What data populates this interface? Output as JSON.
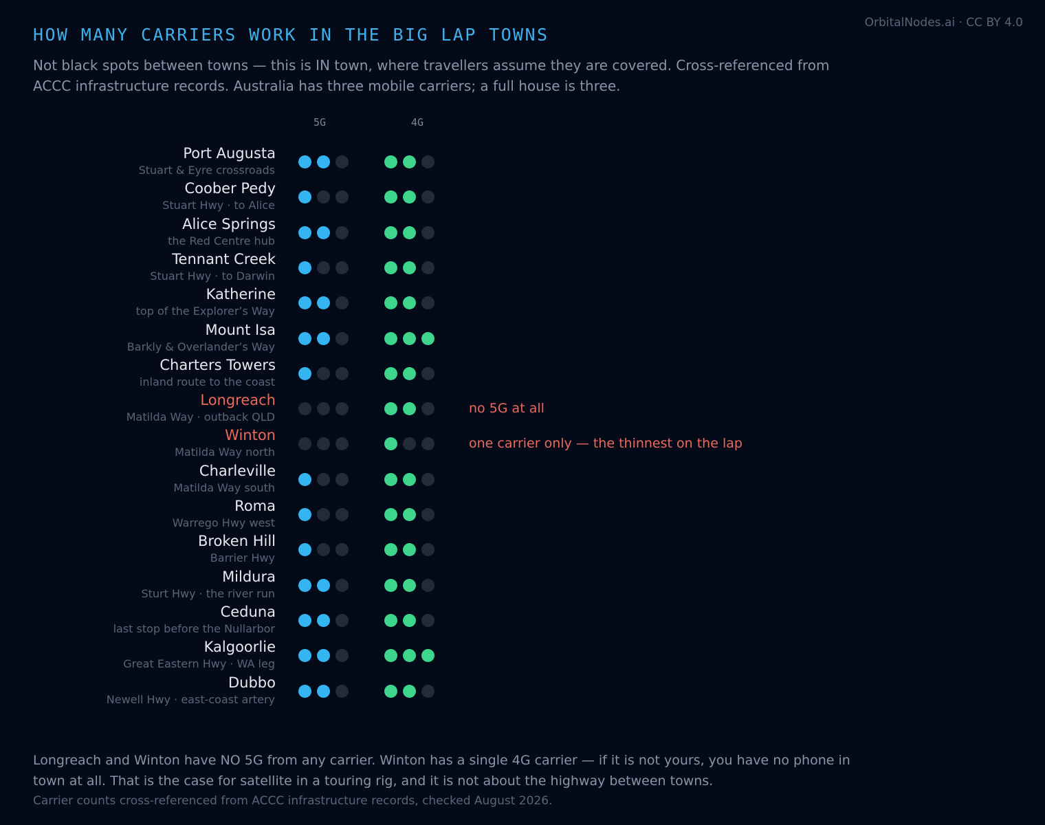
{
  "credit": "OrbitalNodes.ai · CC BY 4.0",
  "title": "HOW MANY CARRIERS WORK IN THE BIG LAP TOWNS",
  "subtitle": "Not black spots between towns — this is IN town, where travellers assume they are covered. Cross-referenced from ACCC infrastructure records. Australia has three mobile carriers; a full house is three.",
  "columns": {
    "g5": "5G",
    "g4": "4G"
  },
  "colors": {
    "g5_on": "#34b4f0",
    "g4_on": "#3dd68c",
    "off": "#232a3a",
    "alert": "#ec6a5a",
    "title": "#3fb0ec"
  },
  "chart_data": {
    "type": "table",
    "max_carriers": 3,
    "rows": [
      {
        "town": "Port Augusta",
        "region": "Stuart & Eyre crossroads",
        "g5": 2,
        "g4": 2
      },
      {
        "town": "Coober Pedy",
        "region": "Stuart Hwy · to Alice",
        "g5": 1,
        "g4": 2
      },
      {
        "town": "Alice Springs",
        "region": "the Red Centre hub",
        "g5": 2,
        "g4": 2
      },
      {
        "town": "Tennant Creek",
        "region": "Stuart Hwy · to Darwin",
        "g5": 1,
        "g4": 2
      },
      {
        "town": "Katherine",
        "region": "top of the Explorer’s Way",
        "g5": 2,
        "g4": 2
      },
      {
        "town": "Mount Isa",
        "region": "Barkly & Overlander’s Way",
        "g5": 2,
        "g4": 3
      },
      {
        "town": "Charters Towers",
        "region": "inland route to the coast",
        "g5": 1,
        "g4": 2
      },
      {
        "town": "Longreach",
        "region": "Matilda Way · outback QLD",
        "g5": 0,
        "g4": 2,
        "alert": true,
        "note": "no 5G at all"
      },
      {
        "town": "Winton",
        "region": "Matilda Way north",
        "g5": 0,
        "g4": 1,
        "alert": true,
        "note": "one carrier only — the thinnest on the lap"
      },
      {
        "town": "Charleville",
        "region": "Matilda Way south",
        "g5": 1,
        "g4": 2
      },
      {
        "town": "Roma",
        "region": "Warrego Hwy west",
        "g5": 1,
        "g4": 2
      },
      {
        "town": "Broken Hill",
        "region": "Barrier Hwy",
        "g5": 1,
        "g4": 2
      },
      {
        "town": "Mildura",
        "region": "Sturt Hwy · the river run",
        "g5": 2,
        "g4": 2
      },
      {
        "town": "Ceduna",
        "region": "last stop before the Nullarbor",
        "g5": 2,
        "g4": 2
      },
      {
        "town": "Kalgoorlie",
        "region": "Great Eastern Hwy · WA leg",
        "g5": 2,
        "g4": 3
      },
      {
        "town": "Dubbo",
        "region": "Newell Hwy · east-coast artery",
        "g5": 2,
        "g4": 2
      }
    ]
  },
  "footer": "Longreach and Winton have NO 5G from any carrier. Winton has a single 4G carrier — if it is not yours, you have no phone in town at all. That is the case for satellite in a touring rig, and it is not about the highway between towns.",
  "footnote": "Carrier counts cross-referenced from ACCC infrastructure records, checked August 2026."
}
